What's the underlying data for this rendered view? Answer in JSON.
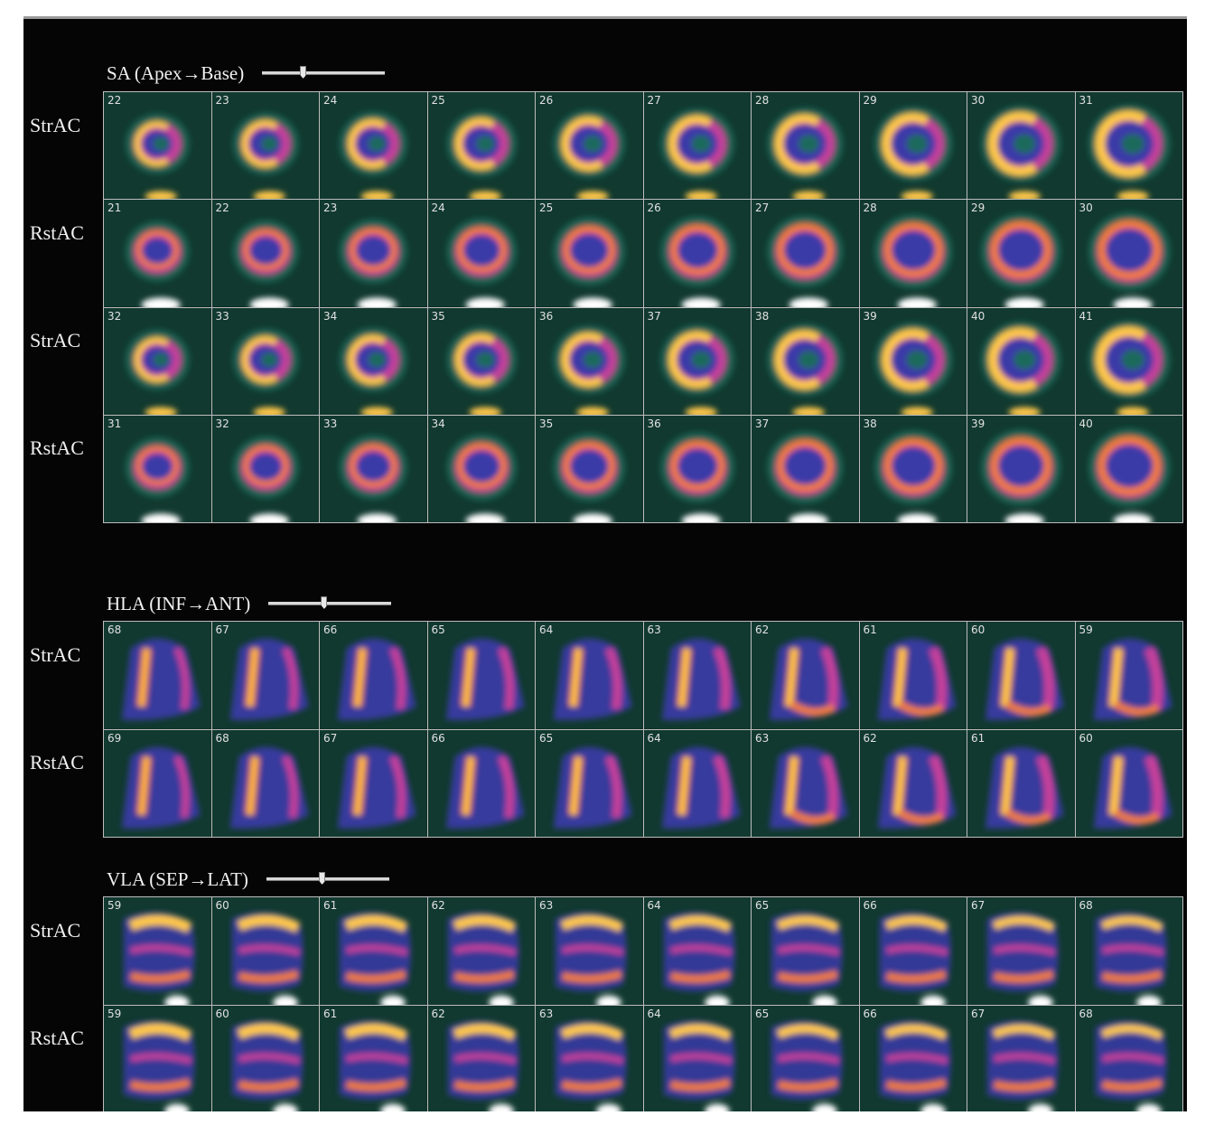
{
  "colors": {
    "background": "#050505",
    "grid_border": "#bdbdbd",
    "colormap": [
      "#103a2e",
      "#1f6a5c",
      "#3a3aa8",
      "#7a34b8",
      "#c5409a",
      "#f07a3a",
      "#ffc74a",
      "#ffffff"
    ]
  },
  "sections": [
    {
      "id": "sa",
      "title": "SA (Apex→Base)",
      "shape": "sa",
      "slider": {
        "position": 0.33
      },
      "rows": [
        {
          "label": "StrAC",
          "kind": "stress",
          "slices": [
            22,
            23,
            24,
            25,
            26,
            27,
            28,
            29,
            30,
            31
          ]
        },
        {
          "label": "RstAC",
          "kind": "rest",
          "slices": [
            21,
            22,
            23,
            24,
            25,
            26,
            27,
            28,
            29,
            30
          ]
        },
        {
          "label": "StrAC",
          "kind": "stress",
          "slices": [
            32,
            33,
            34,
            35,
            36,
            37,
            38,
            39,
            40,
            41
          ]
        },
        {
          "label": "RstAC",
          "kind": "rest",
          "slices": [
            31,
            32,
            33,
            34,
            35,
            36,
            37,
            38,
            39,
            40
          ]
        }
      ]
    },
    {
      "id": "hla",
      "title": "HLA (INF→ANT)",
      "shape": "hla",
      "slider": {
        "position": 0.45
      },
      "rows": [
        {
          "label": "StrAC",
          "kind": "stress",
          "slices": [
            68,
            67,
            66,
            65,
            64,
            63,
            62,
            61,
            60,
            59
          ]
        },
        {
          "label": "RstAC",
          "kind": "rest",
          "slices": [
            69,
            68,
            67,
            66,
            65,
            64,
            63,
            62,
            61,
            60
          ]
        }
      ]
    },
    {
      "id": "vla",
      "title": "VLA (SEP→LAT)",
      "shape": "vla",
      "slider": {
        "position": 0.45
      },
      "rows": [
        {
          "label": "StrAC",
          "kind": "stress",
          "slices": [
            59,
            60,
            61,
            62,
            63,
            64,
            65,
            66,
            67,
            68
          ]
        },
        {
          "label": "RstAC",
          "kind": "rest",
          "slices": [
            59,
            60,
            61,
            62,
            63,
            64,
            65,
            66,
            67,
            68
          ]
        }
      ]
    }
  ]
}
